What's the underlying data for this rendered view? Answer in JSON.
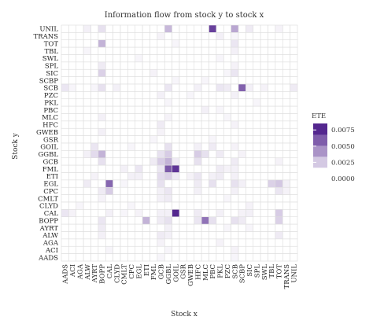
{
  "chart_data": {
    "type": "heatmap",
    "title": "Information flow from stock y to stock x",
    "xlabel": "Stock x",
    "ylabel": "Stock y",
    "x_categories": [
      "AADS",
      "ACI",
      "AGA",
      "ALW",
      "AYRT",
      "BOPP",
      "CAL",
      "CLYD",
      "CMLT",
      "CPC",
      "EGL",
      "ETI",
      "FML",
      "GCB",
      "GGBL",
      "GOIL",
      "GSR",
      "GWEB",
      "HFC",
      "MLC",
      "PBC",
      "PKL",
      "PZC",
      "SCB",
      "SCBP",
      "SIC",
      "SPL",
      "SWL",
      "TBL",
      "TOT",
      "TRANS",
      "UNIL"
    ],
    "y_categories": [
      "UNIL",
      "TRANS",
      "TOT",
      "TBL",
      "SWL",
      "SPL",
      "SIC",
      "SCBP",
      "SCB",
      "PZC",
      "PKL",
      "PBC",
      "MLC",
      "HFC",
      "GWEB",
      "GSR",
      "GOIL",
      "GGBL",
      "GCB",
      "FML",
      "ETI",
      "EGL",
      "CPC",
      "CMLT",
      "CLYD",
      "CAL",
      "BOPP",
      "AYRT",
      "ALW",
      "AGA",
      "ACI",
      "AADS"
    ],
    "value_range": [
      0,
      0.0085
    ],
    "colorbar": {
      "title": "ETE",
      "ticks": [
        "0.0000",
        "0.0025",
        "0.0050",
        "0.0075"
      ],
      "tick_values": [
        0,
        0.0025,
        0.005,
        0.0075
      ],
      "low_color": "#ffffff",
      "high_color": "#54278f"
    },
    "grid_color": "#dddddd",
    "cells": [
      [
        "UNIL",
        "ALW",
        0.0006
      ],
      [
        "UNIL",
        "BOPP",
        0.0012
      ],
      [
        "UNIL",
        "GGBL",
        0.0028
      ],
      [
        "UNIL",
        "PBC",
        0.0075
      ],
      [
        "UNIL",
        "SCB",
        0.0035
      ],
      [
        "UNIL",
        "SIC",
        0.0008
      ],
      [
        "UNIL",
        "TOT",
        0.0005
      ],
      [
        "TRANS",
        "GCB",
        0.0005
      ],
      [
        "TRANS",
        "PKL",
        0.0006
      ],
      [
        "TRANS",
        "SCB",
        0.0004
      ],
      [
        "TOT",
        "BOPP",
        0.003
      ],
      [
        "TOT",
        "SCB",
        0.001
      ],
      [
        "TOT",
        "GOIL",
        0.0004
      ],
      [
        "TBL",
        "ALW",
        0.0004
      ],
      [
        "TBL",
        "SCB",
        0.0006
      ],
      [
        "SWL",
        "EGL",
        0.0004
      ],
      [
        "SWL",
        "PKL",
        0.0004
      ],
      [
        "SPL",
        "BOPP",
        0.0008
      ],
      [
        "SPL",
        "SCB",
        0.0005
      ],
      [
        "SIC",
        "BOPP",
        0.0018
      ],
      [
        "SIC",
        "FML",
        0.0005
      ],
      [
        "SIC",
        "PZC",
        0.0004
      ],
      [
        "SIC",
        "SCB",
        0.001
      ],
      [
        "SCBP",
        "GOIL",
        0.0004
      ],
      [
        "SCBP",
        "MLC",
        0.0004
      ],
      [
        "SCB",
        "AADS",
        0.001
      ],
      [
        "SCB",
        "ACI",
        0.0004
      ],
      [
        "SCB",
        "AYRT",
        0.0004
      ],
      [
        "SCB",
        "BOPP",
        0.0012
      ],
      [
        "SCB",
        "CLYD",
        0.0006
      ],
      [
        "SCB",
        "GGBL",
        0.001
      ],
      [
        "SCB",
        "HFC",
        0.0006
      ],
      [
        "SCB",
        "PKL",
        0.001
      ],
      [
        "SCB",
        "PZC",
        0.0008
      ],
      [
        "SCB",
        "SCBP",
        0.0062
      ],
      [
        "SCB",
        "SIC",
        0.0006
      ],
      [
        "SCB",
        "SWL",
        0.0005
      ],
      [
        "SCB",
        "UNIL",
        0.0008
      ],
      [
        "PZC",
        "GCB",
        0.0006
      ],
      [
        "PZC",
        "GWEB",
        0.0004
      ],
      [
        "PZC",
        "SCB",
        0.0006
      ],
      [
        "PKL",
        "GGBL",
        0.0004
      ],
      [
        "PKL",
        "SPL",
        0.0004
      ],
      [
        "PBC",
        "MLC",
        0.0006
      ],
      [
        "PBC",
        "PKL",
        0.0004
      ],
      [
        "MLC",
        "BOPP",
        0.0006
      ],
      [
        "MLC",
        "GGBL",
        0.0005
      ],
      [
        "MLC",
        "PZC",
        0.0004
      ],
      [
        "HFC",
        "GCB",
        0.0008
      ],
      [
        "HFC",
        "SCB",
        0.0005
      ],
      [
        "GWEB",
        "BOPP",
        0.0006
      ],
      [
        "GWEB",
        "GCB",
        0.0005
      ],
      [
        "GSR",
        "FML",
        0.0004
      ],
      [
        "GSR",
        "PBC",
        0.0004
      ],
      [
        "GOIL",
        "AYRT",
        0.001
      ],
      [
        "GOIL",
        "CPC",
        0.0004
      ],
      [
        "GOIL",
        "GGBL",
        0.0012
      ],
      [
        "GOIL",
        "HFC",
        0.0006
      ],
      [
        "GOIL",
        "PBC",
        0.0008
      ],
      [
        "GOIL",
        "SCB",
        0.0005
      ],
      [
        "GGBL",
        "ALW",
        0.0006
      ],
      [
        "GGBL",
        "AYRT",
        0.0014
      ],
      [
        "GGBL",
        "BOPP",
        0.003
      ],
      [
        "GGBL",
        "GCB",
        0.0012
      ],
      [
        "GGBL",
        "GGBL",
        0.002
      ],
      [
        "GGBL",
        "HFC",
        0.002
      ],
      [
        "GGBL",
        "MLC",
        0.0012
      ],
      [
        "GGBL",
        "PKL",
        0.0008
      ],
      [
        "GGBL",
        "SCBP",
        0.0005
      ],
      [
        "GCB",
        "BOPP",
        0.0012
      ],
      [
        "GCB",
        "FML",
        0.0008
      ],
      [
        "GCB",
        "GCB",
        0.002
      ],
      [
        "GCB",
        "GGBL",
        0.003
      ],
      [
        "GCB",
        "GOIL",
        0.0008
      ],
      [
        "GCB",
        "HFC",
        0.0012
      ],
      [
        "GCB",
        "SCB",
        0.0008
      ],
      [
        "GCB",
        "TOT",
        0.0005
      ],
      [
        "FML",
        "CMLT",
        0.0006
      ],
      [
        "FML",
        "EGL",
        0.001
      ],
      [
        "FML",
        "GCB",
        0.001
      ],
      [
        "FML",
        "GGBL",
        0.0065
      ],
      [
        "FML",
        "GOIL",
        0.008
      ],
      [
        "FML",
        "PKL",
        0.0008
      ],
      [
        "FML",
        "PZC",
        0.0005
      ],
      [
        "FML",
        "SCB",
        0.0006
      ],
      [
        "ETI",
        "AYRT",
        0.0005
      ],
      [
        "ETI",
        "CPC",
        0.0006
      ],
      [
        "ETI",
        "EGL",
        0.0006
      ],
      [
        "ETI",
        "GCB",
        0.0014
      ],
      [
        "ETI",
        "GGBL",
        0.0018
      ],
      [
        "ETI",
        "GOIL",
        0.0008
      ],
      [
        "ETI",
        "GWEB",
        0.0005
      ],
      [
        "ETI",
        "HFC",
        0.001
      ],
      [
        "ETI",
        "PBC",
        0.0006
      ],
      [
        "ETI",
        "PKL",
        0.0008
      ],
      [
        "ETI",
        "SCB",
        0.0006
      ],
      [
        "EGL",
        "ALW",
        0.0008
      ],
      [
        "EGL",
        "CAL",
        0.006
      ],
      [
        "EGL",
        "CMLT",
        0.0004
      ],
      [
        "EGL",
        "GCB",
        0.0012
      ],
      [
        "EGL",
        "HFC",
        0.0008
      ],
      [
        "EGL",
        "PBC",
        0.0012
      ],
      [
        "EGL",
        "SCB",
        0.0012
      ],
      [
        "EGL",
        "SCBP",
        0.0006
      ],
      [
        "EGL",
        "TBL",
        0.0018
      ],
      [
        "EGL",
        "TOT",
        0.0022
      ],
      [
        "EGL",
        "TRANS",
        0.0006
      ],
      [
        "CPC",
        "BOPP",
        0.0008
      ],
      [
        "CPC",
        "CAL",
        0.002
      ],
      [
        "CPC",
        "GCB",
        0.0006
      ],
      [
        "CPC",
        "GGBL",
        0.001
      ],
      [
        "CPC",
        "HFC",
        0.0006
      ],
      [
        "CPC",
        "SCB",
        0.0006
      ],
      [
        "CPC",
        "TOT",
        0.001
      ],
      [
        "CPC",
        "TRANS",
        0.0005
      ],
      [
        "CMLT",
        "BOPP",
        0.0005
      ],
      [
        "CMLT",
        "GCB",
        0.0006
      ],
      [
        "CMLT",
        "GGBL",
        0.0008
      ],
      [
        "CMLT",
        "PZC",
        0.0004
      ],
      [
        "CLYD",
        "AGA",
        0.0004
      ],
      [
        "CLYD",
        "CPC",
        0.0004
      ],
      [
        "CLYD",
        "SIC",
        0.0005
      ],
      [
        "CAL",
        "AADS",
        0.001
      ],
      [
        "CAL",
        "ACI",
        0.0005
      ],
      [
        "CAL",
        "CAL",
        0.0006
      ],
      [
        "CAL",
        "CMLT",
        0.0004
      ],
      [
        "CAL",
        "EGL",
        0.0005
      ],
      [
        "CAL",
        "GCB",
        0.0006
      ],
      [
        "CAL",
        "GGBL",
        0.0006
      ],
      [
        "CAL",
        "GOIL",
        0.0085
      ],
      [
        "CAL",
        "HFC",
        0.0008
      ],
      [
        "CAL",
        "PKL",
        0.0006
      ],
      [
        "CAL",
        "SCBP",
        0.0005
      ],
      [
        "CAL",
        "SIC",
        0.0006
      ],
      [
        "CAL",
        "TOT",
        0.002
      ],
      [
        "BOPP",
        "BOPP",
        0.001
      ],
      [
        "BOPP",
        "ETI",
        0.003
      ],
      [
        "BOPP",
        "GCB",
        0.0008
      ],
      [
        "BOPP",
        "GGBL",
        0.0012
      ],
      [
        "BOPP",
        "HFC",
        0.001
      ],
      [
        "BOPP",
        "MLC",
        0.0055
      ],
      [
        "BOPP",
        "PBC",
        0.0012
      ],
      [
        "BOPP",
        "SCB",
        0.0012
      ],
      [
        "BOPP",
        "SCBP",
        0.0008
      ],
      [
        "BOPP",
        "TOT",
        0.0018
      ],
      [
        "AYRT",
        "BOPP",
        0.0008
      ],
      [
        "AYRT",
        "GGBL",
        0.0006
      ],
      [
        "AYRT",
        "PZC",
        0.0004
      ],
      [
        "AYRT",
        "SIC",
        0.0004
      ],
      [
        "ALW",
        "BOPP",
        0.0006
      ],
      [
        "ALW",
        "GCB",
        0.0008
      ],
      [
        "ALW",
        "GGBL",
        0.0006
      ],
      [
        "ALW",
        "TOT",
        0.0008
      ],
      [
        "AGA",
        "GCB",
        0.0005
      ],
      [
        "AGA",
        "PKL",
        0.0005
      ],
      [
        "ACI",
        "CAL",
        0.0004
      ],
      [
        "ACI",
        "GGBL",
        0.0004
      ],
      [
        "ACI",
        "SCB",
        0.0005
      ],
      [
        "AADS",
        "GCB",
        0.0004
      ],
      [
        "AADS",
        "SCB",
        0.0004
      ]
    ]
  }
}
